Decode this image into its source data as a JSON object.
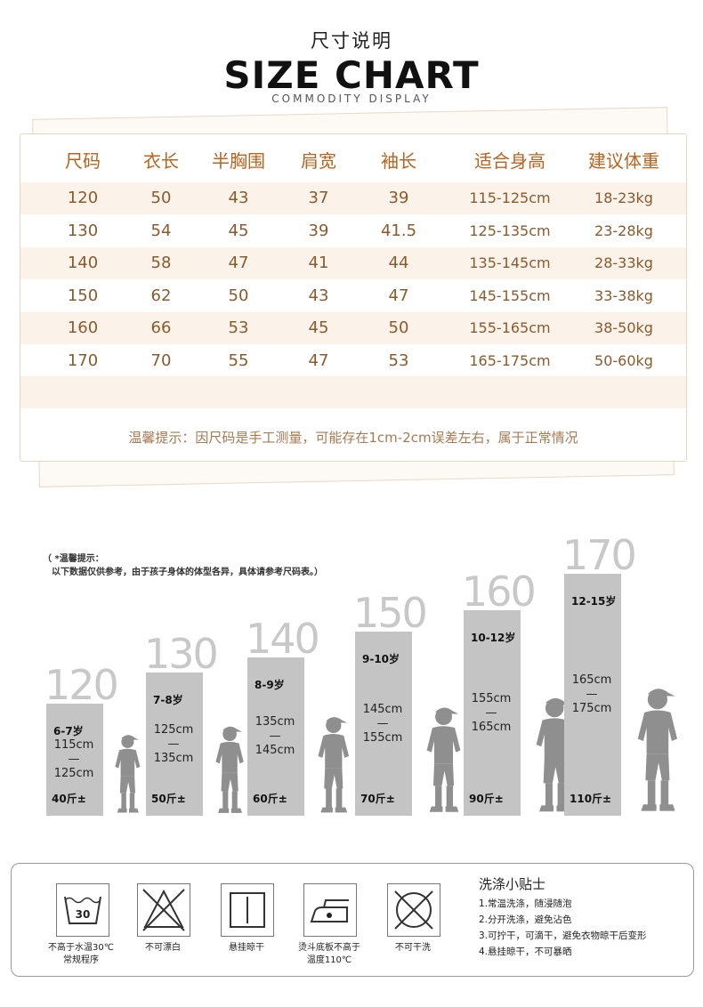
{
  "header": {
    "cn_title": "尺寸说明",
    "en_title": "SIZE CHART",
    "subtitle": "COMMODITY DISPLAY"
  },
  "size_table": {
    "headers": [
      "尺码",
      "衣长",
      "半胸围",
      "肩宽",
      "袖长",
      "适合身高",
      "建议体重"
    ],
    "rows": [
      [
        "120",
        "50",
        "43",
        "37",
        "39",
        "115-125cm",
        "18-23kg"
      ],
      [
        "130",
        "54",
        "45",
        "39",
        "41.5",
        "125-135cm",
        "23-28kg"
      ],
      [
        "140",
        "58",
        "47",
        "41",
        "44",
        "135-145cm",
        "28-33kg"
      ],
      [
        "150",
        "62",
        "50",
        "43",
        "47",
        "145-155cm",
        "33-38kg"
      ],
      [
        "160",
        "66",
        "53",
        "45",
        "50",
        "155-165cm",
        "38-50kg"
      ],
      [
        "170",
        "70",
        "55",
        "47",
        "53",
        "165-175cm",
        "50-60kg"
      ]
    ],
    "note": "温馨提示：因尺码是手工测量，可能存在1cm-2cm误差左右，属于正常情况"
  },
  "chart": {
    "warning_line1": "（ *温馨提示：",
    "warning_line2": "以下数据仅供参考，由于孩子身体的体型各异，具体请参考尺码表。）",
    "bars": [
      {
        "size": "120",
        "age": "6-7岁",
        "h_from": "115cm",
        "h_to": "125cm",
        "weight": "40斤±"
      },
      {
        "size": "130",
        "age": "7-8岁",
        "h_from": "125cm",
        "h_to": "135cm",
        "weight": "50斤±"
      },
      {
        "size": "140",
        "age": "8-9岁",
        "h_from": "135cm",
        "h_to": "145cm",
        "weight": "60斤±"
      },
      {
        "size": "150",
        "age": "9-10岁",
        "h_from": "145cm",
        "h_to": "155cm",
        "weight": "70斤±"
      },
      {
        "size": "160",
        "age": "10-12岁",
        "h_from": "155cm",
        "h_to": "165cm",
        "weight": "90斤±"
      },
      {
        "size": "170",
        "age": "12-15岁",
        "h_from": "165cm",
        "h_to": "175cm",
        "weight": "110斤±"
      }
    ],
    "dash": "—"
  },
  "care": {
    "icons": [
      {
        "name": "wash-30-icon",
        "number": "30",
        "label1": "不高于水温30℃",
        "label2": "常规程序"
      },
      {
        "name": "no-bleach-icon",
        "label1": "不可漂白",
        "label2": ""
      },
      {
        "name": "hang-dry-icon",
        "label1": "悬挂晾干",
        "label2": ""
      },
      {
        "name": "iron-icon",
        "label1": "烫斗底板不高于",
        "label2": "温度110℃"
      },
      {
        "name": "no-dry-clean-icon",
        "label1": "不可干洗",
        "label2": ""
      }
    ],
    "tips_title": "洗涤小贴士",
    "tips": [
      "1.常温洗涤，随浸随泡",
      "2.分开洗涤，避免沾色",
      "3.可拧干，可滴干，避免衣物晾干后变形",
      "4.悬挂晾干，不可暴晒"
    ]
  },
  "colors": {
    "accent": "#b8631f",
    "table_text": "#8a5a2c",
    "row_alt": "#fbf2e9",
    "bar": "#c4c4c4",
    "silhouette": "#8f8f8f"
  }
}
